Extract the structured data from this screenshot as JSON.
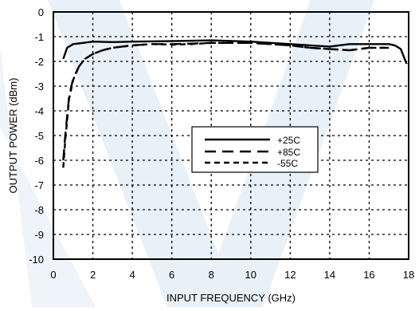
{
  "chart_data": {
    "type": "line",
    "title": "",
    "xlabel": "INPUT FREQUENCY (GHz)",
    "ylabel": "OUTPUT POWER (dBm)",
    "xlim": [
      0,
      18
    ],
    "ylim": [
      -10,
      0
    ],
    "xticks": [
      0,
      2,
      4,
      6,
      8,
      10,
      12,
      14,
      16,
      18
    ],
    "yticks": [
      0,
      -1,
      -2,
      -3,
      -4,
      -5,
      -6,
      -7,
      -8,
      -9,
      -10
    ],
    "grid": true,
    "legend_position": "center-right",
    "series": [
      {
        "name": "+25C",
        "dash": "solid",
        "color": "#000000",
        "x": [
          0.5,
          0.7,
          1.0,
          1.5,
          2.0,
          3.0,
          4.0,
          6.0,
          8.0,
          10.0,
          12.0,
          13.0,
          14.0,
          15.0,
          16.0,
          17.0,
          17.3,
          17.6,
          17.9
        ],
        "y": [
          -1.9,
          -1.45,
          -1.3,
          -1.25,
          -1.2,
          -1.22,
          -1.2,
          -1.18,
          -1.15,
          -1.2,
          -1.3,
          -1.35,
          -1.4,
          -1.3,
          -1.3,
          -1.3,
          -1.35,
          -1.5,
          -2.1
        ]
      },
      {
        "name": "+85C",
        "dash": "long-dash",
        "color": "#000000",
        "x": [
          0.5,
          0.6,
          0.8,
          1.0,
          1.3,
          1.6,
          2.0,
          2.5,
          3.0,
          4.0,
          5.0,
          6.0,
          7.0,
          8.0,
          9.0,
          10.0,
          11.0,
          12.0,
          13.0,
          14.0,
          15.0,
          16.0,
          17.0
        ],
        "y": [
          -6.0,
          -5.0,
          -3.4,
          -2.7,
          -2.2,
          -1.9,
          -1.7,
          -1.55,
          -1.45,
          -1.35,
          -1.3,
          -1.3,
          -1.28,
          -1.25,
          -1.25,
          -1.25,
          -1.3,
          -1.35,
          -1.45,
          -1.5,
          -1.55,
          -1.45,
          -1.45
        ]
      },
      {
        "name": "-55C",
        "dash": "short-dash",
        "color": "#000000",
        "x": [
          0.5,
          0.6,
          0.8,
          1.0,
          1.3,
          1.6,
          2.0,
          2.5,
          3.0,
          4.0,
          5.0,
          6.0,
          7.0,
          8.0,
          9.0,
          10.0,
          11.0,
          12.0,
          13.0,
          14.0,
          15.0,
          16.0,
          17.0
        ],
        "y": [
          -6.3,
          -5.2,
          -3.5,
          -2.75,
          -2.2,
          -1.9,
          -1.7,
          -1.55,
          -1.45,
          -1.35,
          -1.3,
          -1.32,
          -1.3,
          -1.25,
          -1.25,
          -1.25,
          -1.3,
          -1.35,
          -1.45,
          -1.5,
          -1.55,
          -1.45,
          -1.45
        ]
      }
    ]
  },
  "colors": {
    "axis": "#000000",
    "grid": "#000000",
    "watermark": "#cfe0f2"
  }
}
